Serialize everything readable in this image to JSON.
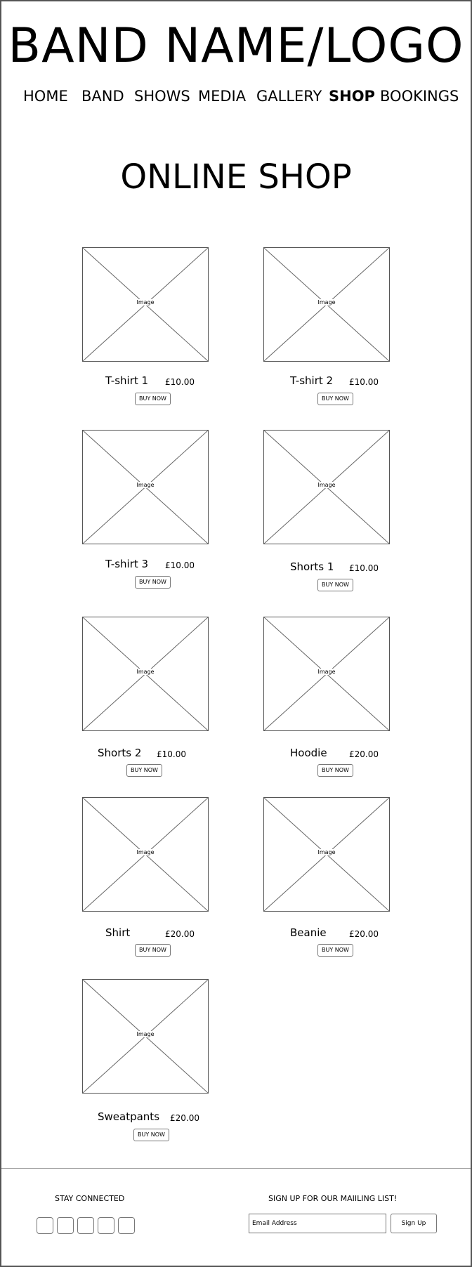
{
  "header": {
    "logo": "BAND NAME/LOGO",
    "nav": [
      {
        "label": "HOME"
      },
      {
        "label": "BAND"
      },
      {
        "label": "SHOWS"
      },
      {
        "label": "MEDIA"
      },
      {
        "label": "GALLERY"
      },
      {
        "label": "SHOP",
        "active": true
      },
      {
        "label": "BOOKINGS"
      }
    ]
  },
  "main": {
    "title": "ONLINE SHOP",
    "image_placeholder_label": "Image",
    "buy_label": "BUY NOW",
    "products": [
      {
        "name": "T-shirt 1",
        "price": "£10.00"
      },
      {
        "name": "T-shirt 2",
        "price": "£10.00"
      },
      {
        "name": "T-shirt 3",
        "price": "£10.00"
      },
      {
        "name": "Shorts 1",
        "price": "£10.00"
      },
      {
        "name": "Shorts 2",
        "price": "£10.00"
      },
      {
        "name": "Hoodie",
        "price": "£20.00"
      },
      {
        "name": "Shirt",
        "price": "£20.00"
      },
      {
        "name": "Beanie",
        "price": "£20.00"
      },
      {
        "name": "Sweatpants",
        "price": "£20.00"
      }
    ]
  },
  "footer": {
    "stay_connected": "STAY CONNECTED",
    "social_icon_count": 5,
    "mailing_title": "SIGN UP FOR OUR MAIILING LIST!",
    "email_placeholder": "Email Address",
    "signup_label": "Sign Up"
  }
}
